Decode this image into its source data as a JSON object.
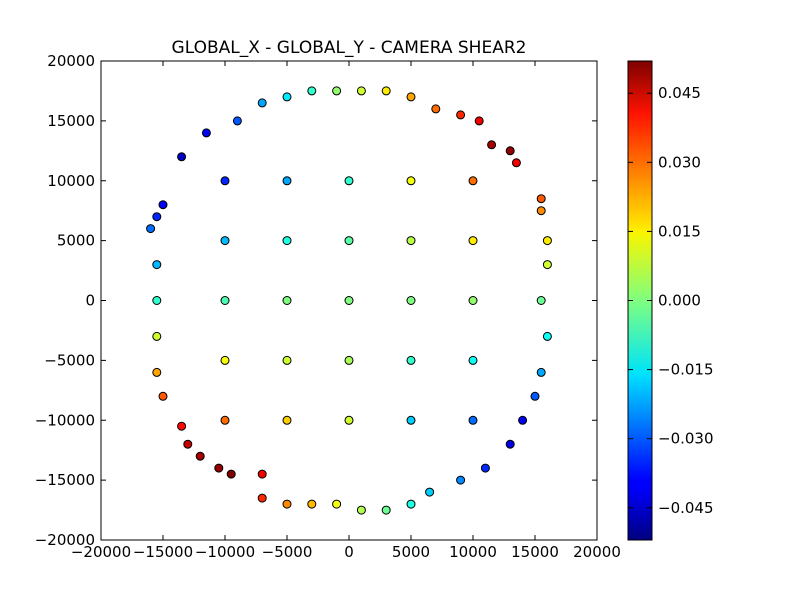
{
  "chart_data": {
    "type": "scatter",
    "title": "GLOBAL_X - GLOBAL_Y - CAMERA SHEAR2",
    "xlabel": "",
    "ylabel": "",
    "xlim": [
      -20000,
      20000
    ],
    "ylim": [
      -20000,
      20000
    ],
    "xticks": [
      -20000,
      -15000,
      -10000,
      -5000,
      0,
      5000,
      10000,
      15000,
      20000
    ],
    "yticks": [
      -20000,
      -15000,
      -10000,
      -5000,
      0,
      5000,
      10000,
      15000,
      20000
    ],
    "xtick_labels": [
      "−20000",
      "−15000",
      "−10000",
      "−5000",
      "0",
      "5000",
      "10000",
      "15000",
      "20000"
    ],
    "ytick_labels": [
      "−20000",
      "−15000",
      "−10000",
      "−5000",
      "0",
      "5000",
      "10000",
      "15000",
      "20000"
    ],
    "grid": false,
    "point_marker": "circle",
    "marker_edge_color": "#000000",
    "colormap": "jet",
    "color_variable": "CAMERA SHEAR2",
    "colorbar": {
      "range": [
        -0.052,
        0.052
      ],
      "ticks": [
        -0.045,
        -0.03,
        -0.015,
        0.0,
        0.015,
        0.03,
        0.045
      ],
      "tick_labels": [
        "−0.045",
        "−0.030",
        "−0.015",
        "0.000",
        "0.015",
        "0.030",
        "0.045"
      ]
    },
    "points": [
      [
        -15000,
        8000,
        -0.04
      ],
      [
        -15500,
        7000,
        -0.035
      ],
      [
        -16000,
        6000,
        -0.028
      ],
      [
        -15500,
        3000,
        -0.02
      ],
      [
        -15500,
        0,
        -0.008
      ],
      [
        -15500,
        -3000,
        0.008
      ],
      [
        -15500,
        -6000,
        0.022
      ],
      [
        -15000,
        -8000,
        0.03
      ],
      [
        -13500,
        -10500,
        0.038
      ],
      [
        -13000,
        -12000,
        0.045
      ],
      [
        -12000,
        -13000,
        0.048
      ],
      [
        -10500,
        -14000,
        0.05
      ],
      [
        -9500,
        -14500,
        0.052
      ],
      [
        -7000,
        -14500,
        0.04
      ],
      [
        -7000,
        -16500,
        0.035
      ],
      [
        -5000,
        -17000,
        0.025
      ],
      [
        -3000,
        -17000,
        0.02
      ],
      [
        -1000,
        -17000,
        0.012
      ],
      [
        1000,
        -17500,
        0.005
      ],
      [
        3000,
        -17500,
        -0.002
      ],
      [
        5000,
        -17000,
        -0.01
      ],
      [
        6500,
        -16000,
        -0.018
      ],
      [
        9000,
        -15000,
        -0.025
      ],
      [
        11000,
        -14000,
        -0.035
      ],
      [
        13000,
        -12000,
        -0.042
      ],
      [
        14000,
        -10000,
        -0.04
      ],
      [
        15000,
        -8000,
        -0.03
      ],
      [
        15500,
        -6000,
        -0.022
      ],
      [
        16000,
        -3000,
        -0.012
      ],
      [
        15500,
        0,
        -0.002
      ],
      [
        16000,
        3000,
        0.008
      ],
      [
        16000,
        5000,
        0.015
      ],
      [
        15500,
        7500,
        0.025
      ],
      [
        15500,
        8500,
        0.03
      ],
      [
        13500,
        11500,
        0.04
      ],
      [
        13000,
        12500,
        0.05
      ],
      [
        11500,
        13000,
        0.048
      ],
      [
        10500,
        15000,
        0.04
      ],
      [
        9000,
        15500,
        0.035
      ],
      [
        7000,
        16000,
        0.028
      ],
      [
        5000,
        17000,
        0.022
      ],
      [
        3000,
        17500,
        0.015
      ],
      [
        1000,
        17500,
        0.008
      ],
      [
        -1000,
        17500,
        0.002
      ],
      [
        -3000,
        17500,
        -0.008
      ],
      [
        -5000,
        17000,
        -0.015
      ],
      [
        -7000,
        16500,
        -0.022
      ],
      [
        -9000,
        15000,
        -0.03
      ],
      [
        -11500,
        14000,
        -0.04
      ],
      [
        -13500,
        12000,
        -0.045
      ],
      [
        -10000,
        10000,
        -0.035
      ],
      [
        -10000,
        5000,
        -0.02
      ],
      [
        -10000,
        0,
        -0.005
      ],
      [
        -10000,
        -5000,
        0.012
      ],
      [
        -10000,
        -10000,
        0.028
      ],
      [
        -5000,
        10000,
        -0.022
      ],
      [
        -5000,
        5000,
        -0.01
      ],
      [
        -5000,
        0,
        0.0
      ],
      [
        -5000,
        -5000,
        0.008
      ],
      [
        -5000,
        -10000,
        0.018
      ],
      [
        0,
        10000,
        -0.008
      ],
      [
        0,
        5000,
        -0.004
      ],
      [
        0,
        0,
        0.0
      ],
      [
        0,
        -5000,
        0.004
      ],
      [
        0,
        -10000,
        0.008
      ],
      [
        5000,
        10000,
        0.012
      ],
      [
        5000,
        5000,
        0.006
      ],
      [
        5000,
        0,
        0.0
      ],
      [
        5000,
        -5000,
        -0.008
      ],
      [
        5000,
        -10000,
        -0.018
      ],
      [
        10000,
        10000,
        0.028
      ],
      [
        10000,
        5000,
        0.015
      ],
      [
        10000,
        0,
        0.002
      ],
      [
        10000,
        -5000,
        -0.012
      ],
      [
        10000,
        -10000,
        -0.028
      ]
    ]
  }
}
